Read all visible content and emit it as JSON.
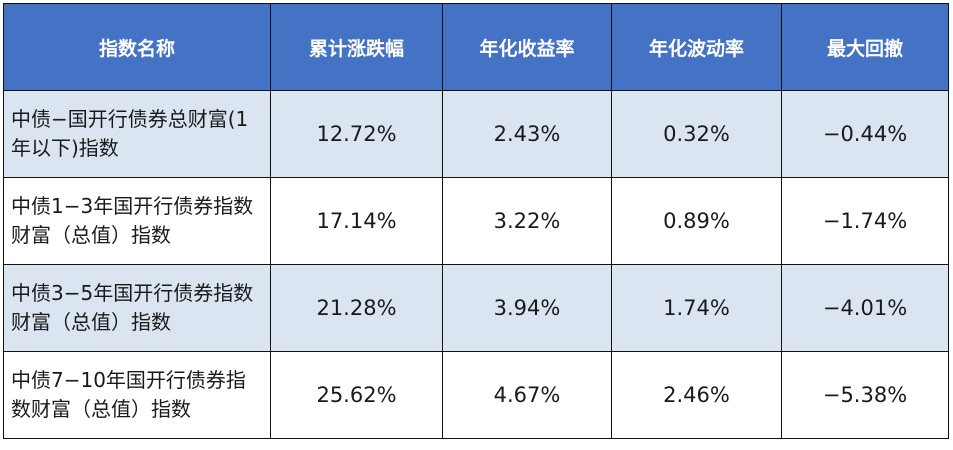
{
  "table": {
    "headers": [
      "指数名称",
      "累计涨跌幅",
      "年化收益率",
      "年化波动率",
      "最大回撤"
    ],
    "rows": [
      {
        "name": "中债−国开行债券总财富(1年以下)指数",
        "cumulative": "12.72%",
        "annual_return": "2.43%",
        "annual_volatility": "0.32%",
        "max_drawdown": "−0.44%"
      },
      {
        "name": "中债1−3年国开行债券指数财富（总值）指数",
        "cumulative": "17.14%",
        "annual_return": "3.22%",
        "annual_volatility": "0.89%",
        "max_drawdown": "−1.74%"
      },
      {
        "name": "中债3−5年国开行债券指数财富（总值）指数",
        "cumulative": "21.28%",
        "annual_return": "3.94%",
        "annual_volatility": "1.74%",
        "max_drawdown": "−4.01%"
      },
      {
        "name": "中债7−10年国开行债券指数财富（总值）指数",
        "cumulative": "25.62%",
        "annual_return": "4.67%",
        "annual_volatility": "2.46%",
        "max_drawdown": "−5.38%"
      }
    ]
  },
  "colors": {
    "header_bg": "#4472c4",
    "header_text": "#ffffff",
    "shaded_row_bg": "#dbe5f1",
    "plain_row_bg": "#ffffff",
    "border": "#111111"
  }
}
